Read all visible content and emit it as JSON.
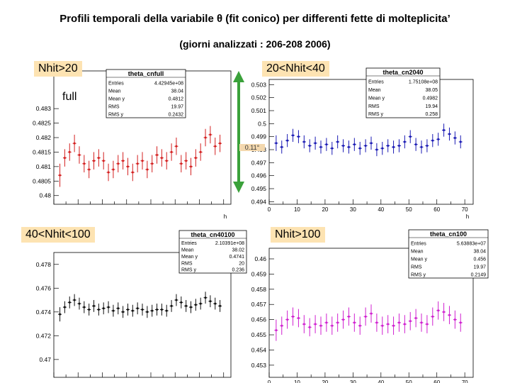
{
  "title": "Profili temporali della variabile θ (fit conico) per differenti fette di molteplicita’",
  "subtitle": "(giorni analizzati : 206-208 2006)",
  "arrow_label": "0.11°",
  "colors": {
    "tag_bg": "#fde3b2",
    "arrow": "#3aa13a",
    "panel1": "#d42020",
    "panel2": "#1a1ab4",
    "panel3": "#111111",
    "panel4": "#d020d0"
  },
  "chart_data": [
    {
      "type": "scatter",
      "tag": "Nhit>20",
      "sublabel": "full",
      "color": "#d42020",
      "stats": {
        "title": "theta_cnfull",
        "rows": [
          [
            "Entries",
            "4.42945e+08"
          ],
          [
            "Mean",
            "38.04"
          ],
          [
            "Mean y",
            "0.4812"
          ],
          [
            "RMS",
            "19.97"
          ],
          [
            "RMS y",
            "0.2432"
          ]
        ]
      },
      "xlabel": "h",
      "xlim": [
        0,
        73
      ],
      "ylim": [
        0.4797,
        0.4843
      ],
      "yticks": [
        "0.48",
        "0.4805",
        "0.481",
        "0.4815",
        "0.482",
        "0.4825",
        "0.483"
      ],
      "yticks_values": [
        0.48,
        0.4805,
        0.481,
        0.4815,
        0.482,
        0.4825,
        0.483
      ],
      "xticks": [],
      "x": [
        2.5,
        4.5,
        6.5,
        8.5,
        10.5,
        12.5,
        14.5,
        16.5,
        18.5,
        20.5,
        22.5,
        24.5,
        26.5,
        28.5,
        30.5,
        32.5,
        34.5,
        36.5,
        38.5,
        40.5,
        42.5,
        44.5,
        46.5,
        48.5,
        50.5,
        52.5,
        54.5,
        56.5,
        58.5,
        60.5,
        62.5,
        64.5,
        66.5,
        68.5
      ],
      "y": [
        0.4807,
        0.4813,
        0.4815,
        0.4818,
        0.4814,
        0.4811,
        0.4809,
        0.4812,
        0.4813,
        0.4812,
        0.4808,
        0.4809,
        0.4811,
        0.4812,
        0.481,
        0.4808,
        0.4811,
        0.4812,
        0.4809,
        0.4811,
        0.4814,
        0.4813,
        0.4812,
        0.4815,
        0.4817,
        0.4811,
        0.4812,
        0.481,
        0.4813,
        0.4815,
        0.482,
        0.4821,
        0.4817,
        0.4818
      ],
      "err": [
        0.0004,
        0.0003,
        0.0003,
        0.0003,
        0.0003,
        0.0003,
        0.0003,
        0.0003,
        0.0003,
        0.0003,
        0.0003,
        0.0003,
        0.0003,
        0.0003,
        0.0003,
        0.0003,
        0.0003,
        0.0003,
        0.0003,
        0.0003,
        0.0003,
        0.0003,
        0.0003,
        0.0003,
        0.0003,
        0.0003,
        0.0003,
        0.0003,
        0.0003,
        0.0003,
        0.0003,
        0.0003,
        0.0003,
        0.0003
      ]
    },
    {
      "type": "scatter",
      "tag": "20<Nhit<40",
      "color": "#1a1ab4",
      "stats": {
        "title": "theta_cn2040",
        "rows": [
          [
            "Entries",
            "1.75108e+08"
          ],
          [
            "Mean",
            "38.05"
          ],
          [
            "Mean y",
            "0.4982"
          ],
          [
            "RMS",
            "19.94"
          ],
          [
            "RMS y",
            "0.258"
          ]
        ]
      },
      "xlabel": "h",
      "xlim": [
        0,
        73
      ],
      "ylim": [
        0.4938,
        0.5034
      ],
      "yticks": [
        "0.494",
        "0.495",
        "0.496",
        "0.497",
        "0.498",
        "0.499",
        "0.5",
        "0.501",
        "0.502",
        "0.503"
      ],
      "yticks_values": [
        0.494,
        0.495,
        0.496,
        0.497,
        0.498,
        0.499,
        0.5,
        0.501,
        0.502,
        0.503
      ],
      "xticks": [
        "0",
        "10",
        "20",
        "30",
        "40",
        "50",
        "60",
        "70"
      ],
      "x": [
        2.5,
        4.5,
        6.5,
        8.5,
        10.5,
        12.5,
        14.5,
        16.5,
        18.5,
        20.5,
        22.5,
        24.5,
        26.5,
        28.5,
        30.5,
        32.5,
        34.5,
        36.5,
        38.5,
        40.5,
        42.5,
        44.5,
        46.5,
        48.5,
        50.5,
        52.5,
        54.5,
        56.5,
        58.5,
        60.5,
        62.5,
        64.5,
        66.5,
        68.5
      ],
      "y": [
        0.4985,
        0.4982,
        0.4987,
        0.4991,
        0.499,
        0.4986,
        0.4983,
        0.4985,
        0.4982,
        0.4984,
        0.4981,
        0.4986,
        0.4983,
        0.4982,
        0.4984,
        0.4981,
        0.4983,
        0.4985,
        0.498,
        0.4981,
        0.4983,
        0.4982,
        0.4983,
        0.4986,
        0.499,
        0.4984,
        0.4982,
        0.4983,
        0.4987,
        0.4988,
        0.4995,
        0.4992,
        0.4989,
        0.4986
      ],
      "err": [
        0.0006,
        0.0005,
        0.0005,
        0.0005,
        0.0005,
        0.0005,
        0.0005,
        0.0005,
        0.0005,
        0.0005,
        0.0005,
        0.0005,
        0.0005,
        0.0005,
        0.0005,
        0.0005,
        0.0005,
        0.0005,
        0.0005,
        0.0005,
        0.0005,
        0.0005,
        0.0005,
        0.0005,
        0.0005,
        0.0005,
        0.0005,
        0.0005,
        0.0005,
        0.0005,
        0.0005,
        0.0005,
        0.0005,
        0.0005
      ]
    },
    {
      "type": "scatter",
      "tag": "40<Nhit<100",
      "color": "#111111",
      "stats": {
        "title": "theta_cn40100",
        "rows": [
          [
            "Entries",
            "2.10391e+08"
          ],
          [
            "Mean",
            "38.02"
          ],
          [
            "Mean y",
            "0.4741"
          ],
          [
            "RMS",
            "20"
          ],
          [
            "RMS y",
            "0.236"
          ]
        ]
      },
      "xlabel": "",
      "xlim": [
        0,
        73
      ],
      "ylim": [
        0.4685,
        0.479
      ],
      "yticks": [
        "0.47",
        "0.472",
        "0.474",
        "0.476",
        "0.478"
      ],
      "yticks_values": [
        0.47,
        0.472,
        0.474,
        0.476,
        0.478
      ],
      "xticks": [],
      "x": [
        2.5,
        4.5,
        6.5,
        8.5,
        10.5,
        12.5,
        14.5,
        16.5,
        18.5,
        20.5,
        22.5,
        24.5,
        26.5,
        28.5,
        30.5,
        32.5,
        34.5,
        36.5,
        38.5,
        40.5,
        42.5,
        44.5,
        46.5,
        48.5,
        50.5,
        52.5,
        54.5,
        56.5,
        58.5,
        60.5,
        62.5,
        64.5,
        66.5,
        68.5
      ],
      "y": [
        0.4738,
        0.4744,
        0.4748,
        0.475,
        0.4747,
        0.4744,
        0.4742,
        0.4745,
        0.4742,
        0.4743,
        0.4744,
        0.4741,
        0.4743,
        0.474,
        0.4742,
        0.4741,
        0.4743,
        0.4742,
        0.474,
        0.4741,
        0.4742,
        0.4742,
        0.4741,
        0.4745,
        0.475,
        0.4748,
        0.4745,
        0.4744,
        0.4746,
        0.4747,
        0.4752,
        0.4749,
        0.4747,
        0.4745
      ],
      "err": [
        0.0006,
        0.0005,
        0.0005,
        0.0005,
        0.0005,
        0.0005,
        0.0005,
        0.0005,
        0.0005,
        0.0005,
        0.0005,
        0.0005,
        0.0005,
        0.0005,
        0.0005,
        0.0005,
        0.0005,
        0.0005,
        0.0005,
        0.0005,
        0.0005,
        0.0005,
        0.0005,
        0.0005,
        0.0005,
        0.0005,
        0.0005,
        0.0005,
        0.0005,
        0.0005,
        0.0005,
        0.0005,
        0.0005,
        0.0005
      ]
    },
    {
      "type": "scatter",
      "tag": "Nhit>100",
      "color": "#d020d0",
      "stats": {
        "title": "theta_cn100",
        "rows": [
          [
            "Entries",
            "5.63883e+07"
          ],
          [
            "Mean",
            "38.04"
          ],
          [
            "Mean y",
            "0.456"
          ],
          [
            "RMS",
            "19.97"
          ],
          [
            "RMS y",
            "0.2149"
          ]
        ]
      },
      "xlabel": "h",
      "xlim": [
        0,
        73
      ],
      "ylim": [
        0.4522,
        0.4607
      ],
      "yticks": [
        "0.453",
        "0.454",
        "0.455",
        "0.456",
        "0.457",
        "0.458",
        "0.459",
        "0.46"
      ],
      "yticks_values": [
        0.453,
        0.454,
        0.455,
        0.456,
        0.457,
        0.458,
        0.459,
        0.46
      ],
      "xticks": [
        "0",
        "10",
        "20",
        "30",
        "40",
        "50",
        "60",
        "70"
      ],
      "x": [
        2.5,
        4.5,
        6.5,
        8.5,
        10.5,
        12.5,
        14.5,
        16.5,
        18.5,
        20.5,
        22.5,
        24.5,
        26.5,
        28.5,
        30.5,
        32.5,
        34.5,
        36.5,
        38.5,
        40.5,
        42.5,
        44.5,
        46.5,
        48.5,
        50.5,
        52.5,
        54.5,
        56.5,
        58.5,
        60.5,
        62.5,
        64.5,
        66.5,
        68.5
      ],
      "y": [
        0.4553,
        0.4556,
        0.456,
        0.4562,
        0.4561,
        0.4557,
        0.4555,
        0.4557,
        0.4556,
        0.4558,
        0.4556,
        0.4558,
        0.456,
        0.4562,
        0.4558,
        0.4556,
        0.4562,
        0.4564,
        0.4558,
        0.4556,
        0.4557,
        0.4556,
        0.4558,
        0.4557,
        0.4559,
        0.4561,
        0.4558,
        0.4557,
        0.4562,
        0.4566,
        0.4565,
        0.4563,
        0.456,
        0.4558
      ],
      "err": [
        0.0007,
        0.0006,
        0.0006,
        0.0006,
        0.0006,
        0.0006,
        0.0006,
        0.0006,
        0.0006,
        0.0006,
        0.0006,
        0.0006,
        0.0006,
        0.0006,
        0.0006,
        0.0006,
        0.0006,
        0.0006,
        0.0006,
        0.0006,
        0.0006,
        0.0006,
        0.0006,
        0.0006,
        0.0006,
        0.0006,
        0.0006,
        0.0006,
        0.0006,
        0.0006,
        0.0006,
        0.0006,
        0.0006,
        0.0006
      ]
    }
  ]
}
